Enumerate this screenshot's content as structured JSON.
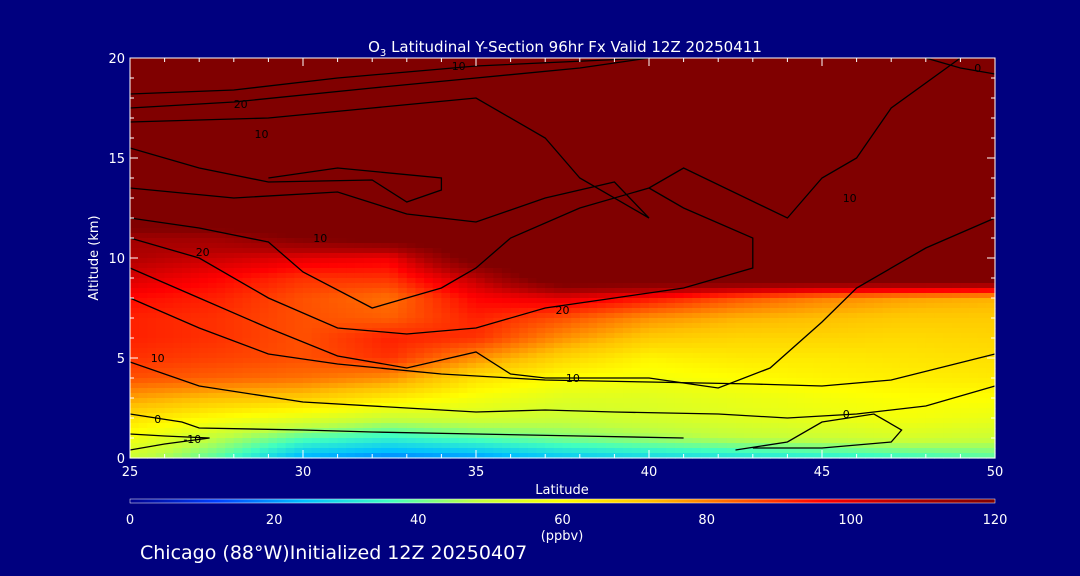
{
  "chart_data": {
    "type": "heatmap",
    "title_species": "O",
    "title_sub": "3",
    "title_rest": " Latitudinal Y-Section 96hr  Fx Valid 12Z 20250411",
    "xlabel": "Latitude",
    "ylabel": "Altitude (km)",
    "xlim": [
      25,
      50
    ],
    "ylim": [
      0,
      20
    ],
    "x_ticks": [
      25,
      30,
      35,
      40,
      45,
      50
    ],
    "y_ticks": [
      0,
      5,
      10,
      15,
      20
    ],
    "colorbar": {
      "label": "(ppbv)",
      "range": [
        0,
        120
      ],
      "ticks": [
        0,
        20,
        40,
        60,
        80,
        100,
        120
      ],
      "colors": [
        "#00008f",
        "#0040ff",
        "#00c0ff",
        "#40ffc0",
        "#c0ff40",
        "#ffff00",
        "#ffc000",
        "#ff6000",
        "#ff0000",
        "#b00000",
        "#800000"
      ]
    },
    "ozone_field": {
      "lat": [
        25,
        27.5,
        30,
        32.5,
        35,
        37.5,
        40,
        42.5,
        45,
        47.5,
        50
      ],
      "alt": [
        0,
        1,
        2,
        3,
        4,
        5,
        6,
        7,
        8,
        9,
        10,
        11,
        12,
        14,
        16,
        18,
        20
      ],
      "ppbv": [
        [
          50,
          38,
          22,
          18,
          20,
          25,
          28,
          30,
          32,
          35,
          38
        ],
        [
          58,
          48,
          38,
          34,
          38,
          42,
          45,
          48,
          50,
          52,
          50
        ],
        [
          66,
          60,
          55,
          50,
          52,
          50,
          52,
          54,
          56,
          58,
          56
        ],
        [
          76,
          72,
          70,
          64,
          58,
          54,
          54,
          56,
          58,
          60,
          60
        ],
        [
          86,
          84,
          82,
          78,
          66,
          60,
          58,
          60,
          62,
          63,
          64
        ],
        [
          90,
          88,
          86,
          90,
          78,
          68,
          62,
          64,
          64,
          65,
          66
        ],
        [
          92,
          90,
          86,
          92,
          90,
          78,
          70,
          68,
          68,
          67,
          68
        ],
        [
          92,
          90,
          86,
          84,
          92,
          86,
          78,
          74,
          72,
          70,
          70
        ],
        [
          95,
          92,
          86,
          82,
          96,
          100,
          94,
          86,
          80,
          76,
          74
        ],
        [
          102,
          96,
          90,
          90,
          106,
          130,
          130,
          130,
          130,
          130,
          130
        ],
        [
          108,
          104,
          100,
          98,
          125,
          130,
          130,
          130,
          130,
          130,
          130
        ],
        [
          112,
          112,
          120,
          125,
          130,
          130,
          130,
          130,
          130,
          130,
          130
        ],
        [
          130,
          130,
          130,
          130,
          130,
          130,
          130,
          130,
          130,
          130,
          130
        ],
        [
          130,
          130,
          130,
          130,
          130,
          130,
          130,
          130,
          130,
          130,
          130
        ],
        [
          130,
          130,
          130,
          130,
          130,
          130,
          130,
          130,
          130,
          130,
          130
        ],
        [
          130,
          130,
          130,
          130,
          130,
          130,
          130,
          130,
          130,
          130,
          130
        ],
        [
          130,
          130,
          130,
          130,
          130,
          130,
          130,
          130,
          130,
          130,
          130
        ]
      ]
    },
    "contours": [
      {
        "value": "-10",
        "points": [
          [
            25,
            0.4
          ],
          [
            26,
            0.7
          ],
          [
            27.3,
            1.0
          ],
          [
            26,
            1.1
          ],
          [
            25,
            1.2
          ]
        ]
      },
      {
        "value": "0",
        "points": [
          [
            25,
            2.2
          ],
          [
            26.5,
            1.8
          ],
          [
            27,
            1.5
          ],
          [
            30,
            1.4
          ],
          [
            32,
            1.3
          ],
          [
            35,
            1.2
          ],
          [
            38,
            1.1
          ],
          [
            41,
            1.0
          ]
        ]
      },
      {
        "value": "0",
        "points": [
          [
            42.5,
            0.4
          ],
          [
            44,
            0.8
          ],
          [
            45,
            1.8
          ],
          [
            46.5,
            2.2
          ],
          [
            47.3,
            1.4
          ],
          [
            47,
            0.8
          ],
          [
            45,
            0.5
          ],
          [
            43,
            0.5
          ]
        ]
      },
      {
        "value": "10",
        "points": [
          [
            25,
            4.8
          ],
          [
            27,
            3.6
          ],
          [
            30,
            2.8
          ],
          [
            33,
            2.5
          ],
          [
            35,
            2.3
          ],
          [
            37,
            2.4
          ],
          [
            39,
            2.3
          ],
          [
            42,
            2.2
          ],
          [
            44,
            2.0
          ],
          [
            46,
            2.2
          ],
          [
            48,
            2.6
          ],
          [
            50,
            3.6
          ]
        ]
      },
      {
        "value": "20",
        "points": [
          [
            25,
            8.0
          ],
          [
            27,
            6.5
          ],
          [
            29,
            5.2
          ],
          [
            31,
            4.7
          ],
          [
            34,
            4.2
          ],
          [
            37,
            3.9
          ],
          [
            40,
            3.8
          ],
          [
            43,
            3.7
          ],
          [
            45,
            3.6
          ],
          [
            47,
            3.9
          ],
          [
            50,
            5.2
          ]
        ]
      },
      {
        "value": "10",
        "points": [
          [
            25,
            9.5
          ],
          [
            27,
            8.0
          ],
          [
            29,
            6.5
          ],
          [
            31,
            5.1
          ],
          [
            33,
            4.5
          ],
          [
            35,
            5.3
          ],
          [
            36,
            4.2
          ],
          [
            37,
            4.0
          ],
          [
            40,
            4.0
          ],
          [
            42,
            3.5
          ],
          [
            43.5,
            4.5
          ],
          [
            45,
            6.8
          ],
          [
            46,
            8.5
          ],
          [
            48,
            10.5
          ],
          [
            50,
            12.0
          ]
        ]
      },
      {
        "value": "20",
        "points": [
          [
            25,
            11.0
          ],
          [
            27,
            10.0
          ],
          [
            29,
            8.0
          ],
          [
            31,
            6.5
          ],
          [
            33,
            6.2
          ],
          [
            35,
            6.5
          ],
          [
            37,
            7.5
          ],
          [
            39,
            8.0
          ],
          [
            41,
            8.5
          ],
          [
            43,
            9.5
          ],
          [
            43,
            11.0
          ],
          [
            41,
            12.5
          ],
          [
            40,
            13.5
          ]
        ]
      },
      {
        "value": "10",
        "points": [
          [
            25,
            12.0
          ],
          [
            27,
            11.5
          ],
          [
            29,
            10.8
          ],
          [
            30,
            9.3
          ],
          [
            32,
            7.5
          ],
          [
            34,
            8.5
          ],
          [
            35,
            9.5
          ],
          [
            36,
            11.0
          ],
          [
            38,
            12.5
          ],
          [
            40,
            13.5
          ],
          [
            41,
            14.5
          ],
          [
            44,
            12.0
          ],
          [
            45,
            14.0
          ],
          [
            46,
            15.0
          ],
          [
            47,
            17.5
          ],
          [
            49,
            20.0
          ]
        ]
      },
      {
        "value": "20",
        "points": [
          [
            25,
            13.5
          ],
          [
            28,
            13.0
          ],
          [
            31,
            13.3
          ],
          [
            33,
            12.2
          ],
          [
            35,
            11.8
          ],
          [
            37,
            13.0
          ],
          [
            39,
            13.8
          ],
          [
            40,
            12.0
          ],
          [
            38,
            14.0
          ],
          [
            37,
            16.0
          ],
          [
            35,
            18.0
          ],
          [
            32,
            17.5
          ],
          [
            29,
            17.0
          ],
          [
            25,
            16.8
          ]
        ]
      },
      {
        "value": "10",
        "points": [
          [
            25,
            15.5
          ],
          [
            27,
            14.5
          ],
          [
            29,
            13.8
          ],
          [
            32,
            13.9
          ],
          [
            33,
            12.8
          ],
          [
            34,
            13.4
          ],
          [
            34,
            14.0
          ],
          [
            31,
            14.5
          ],
          [
            29,
            14.0
          ]
        ]
      },
      {
        "value": "10",
        "points": [
          [
            25,
            17.5
          ],
          [
            28,
            17.8
          ],
          [
            32,
            18.5
          ],
          [
            35,
            19.0
          ],
          [
            38,
            19.5
          ],
          [
            40,
            20.0
          ]
        ]
      },
      {
        "value": "20",
        "points": [
          [
            25,
            18.2
          ],
          [
            28,
            18.4
          ],
          [
            31,
            19.0
          ],
          [
            35,
            19.6
          ],
          [
            40,
            20.0
          ]
        ]
      },
      {
        "value": "0",
        "points": [
          [
            48,
            20.0
          ],
          [
            49,
            19.5
          ],
          [
            50,
            19.2
          ]
        ]
      }
    ],
    "contour_labels": [
      {
        "text": "-10",
        "x": 26.8,
        "y": 0.95
      },
      {
        "text": "0",
        "x": 25.8,
        "y": 1.95
      },
      {
        "text": "0",
        "x": 45.7,
        "y": 2.2
      },
      {
        "text": "10",
        "x": 25.8,
        "y": 5.0
      },
      {
        "text": "10",
        "x": 37.8,
        "y": 4.0
      },
      {
        "text": "20",
        "x": 27.1,
        "y": 10.3
      },
      {
        "text": "10",
        "x": 30.5,
        "y": 11.0
      },
      {
        "text": "20",
        "x": 37.5,
        "y": 7.4
      },
      {
        "text": "10",
        "x": 45.8,
        "y": 13.0
      },
      {
        "text": "20",
        "x": 28.2,
        "y": 17.7
      },
      {
        "text": "10",
        "x": 28.8,
        "y": 16.2
      },
      {
        "text": "10",
        "x": 34.5,
        "y": 19.6
      },
      {
        "text": "0",
        "x": 49.5,
        "y": 19.5
      }
    ]
  },
  "footer": {
    "station_text": "Chicago (88°W)Initialized 12Z 20250407"
  }
}
